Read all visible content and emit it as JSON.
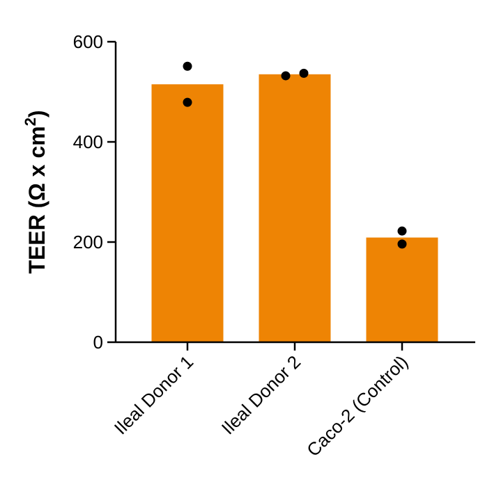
{
  "chart_data": {
    "type": "bar",
    "categories": [
      "Ileal Donor 1",
      "Ileal Donor 2",
      "Caco-2 (Control)"
    ],
    "values": [
      515,
      535,
      209
    ],
    "points": [
      [
        551,
        479
      ],
      [
        532,
        537
      ],
      [
        222,
        196
      ]
    ],
    "title": "",
    "xlabel": "",
    "ylabel": {
      "main": "TEER (Ω x cm",
      "sup": "2",
      "close": ")"
    },
    "ylim": [
      0,
      600
    ],
    "yticks": [
      0,
      200,
      400,
      600
    ],
    "grid": false,
    "colors": {
      "bar": "#EE8404",
      "point": "#000000"
    }
  }
}
